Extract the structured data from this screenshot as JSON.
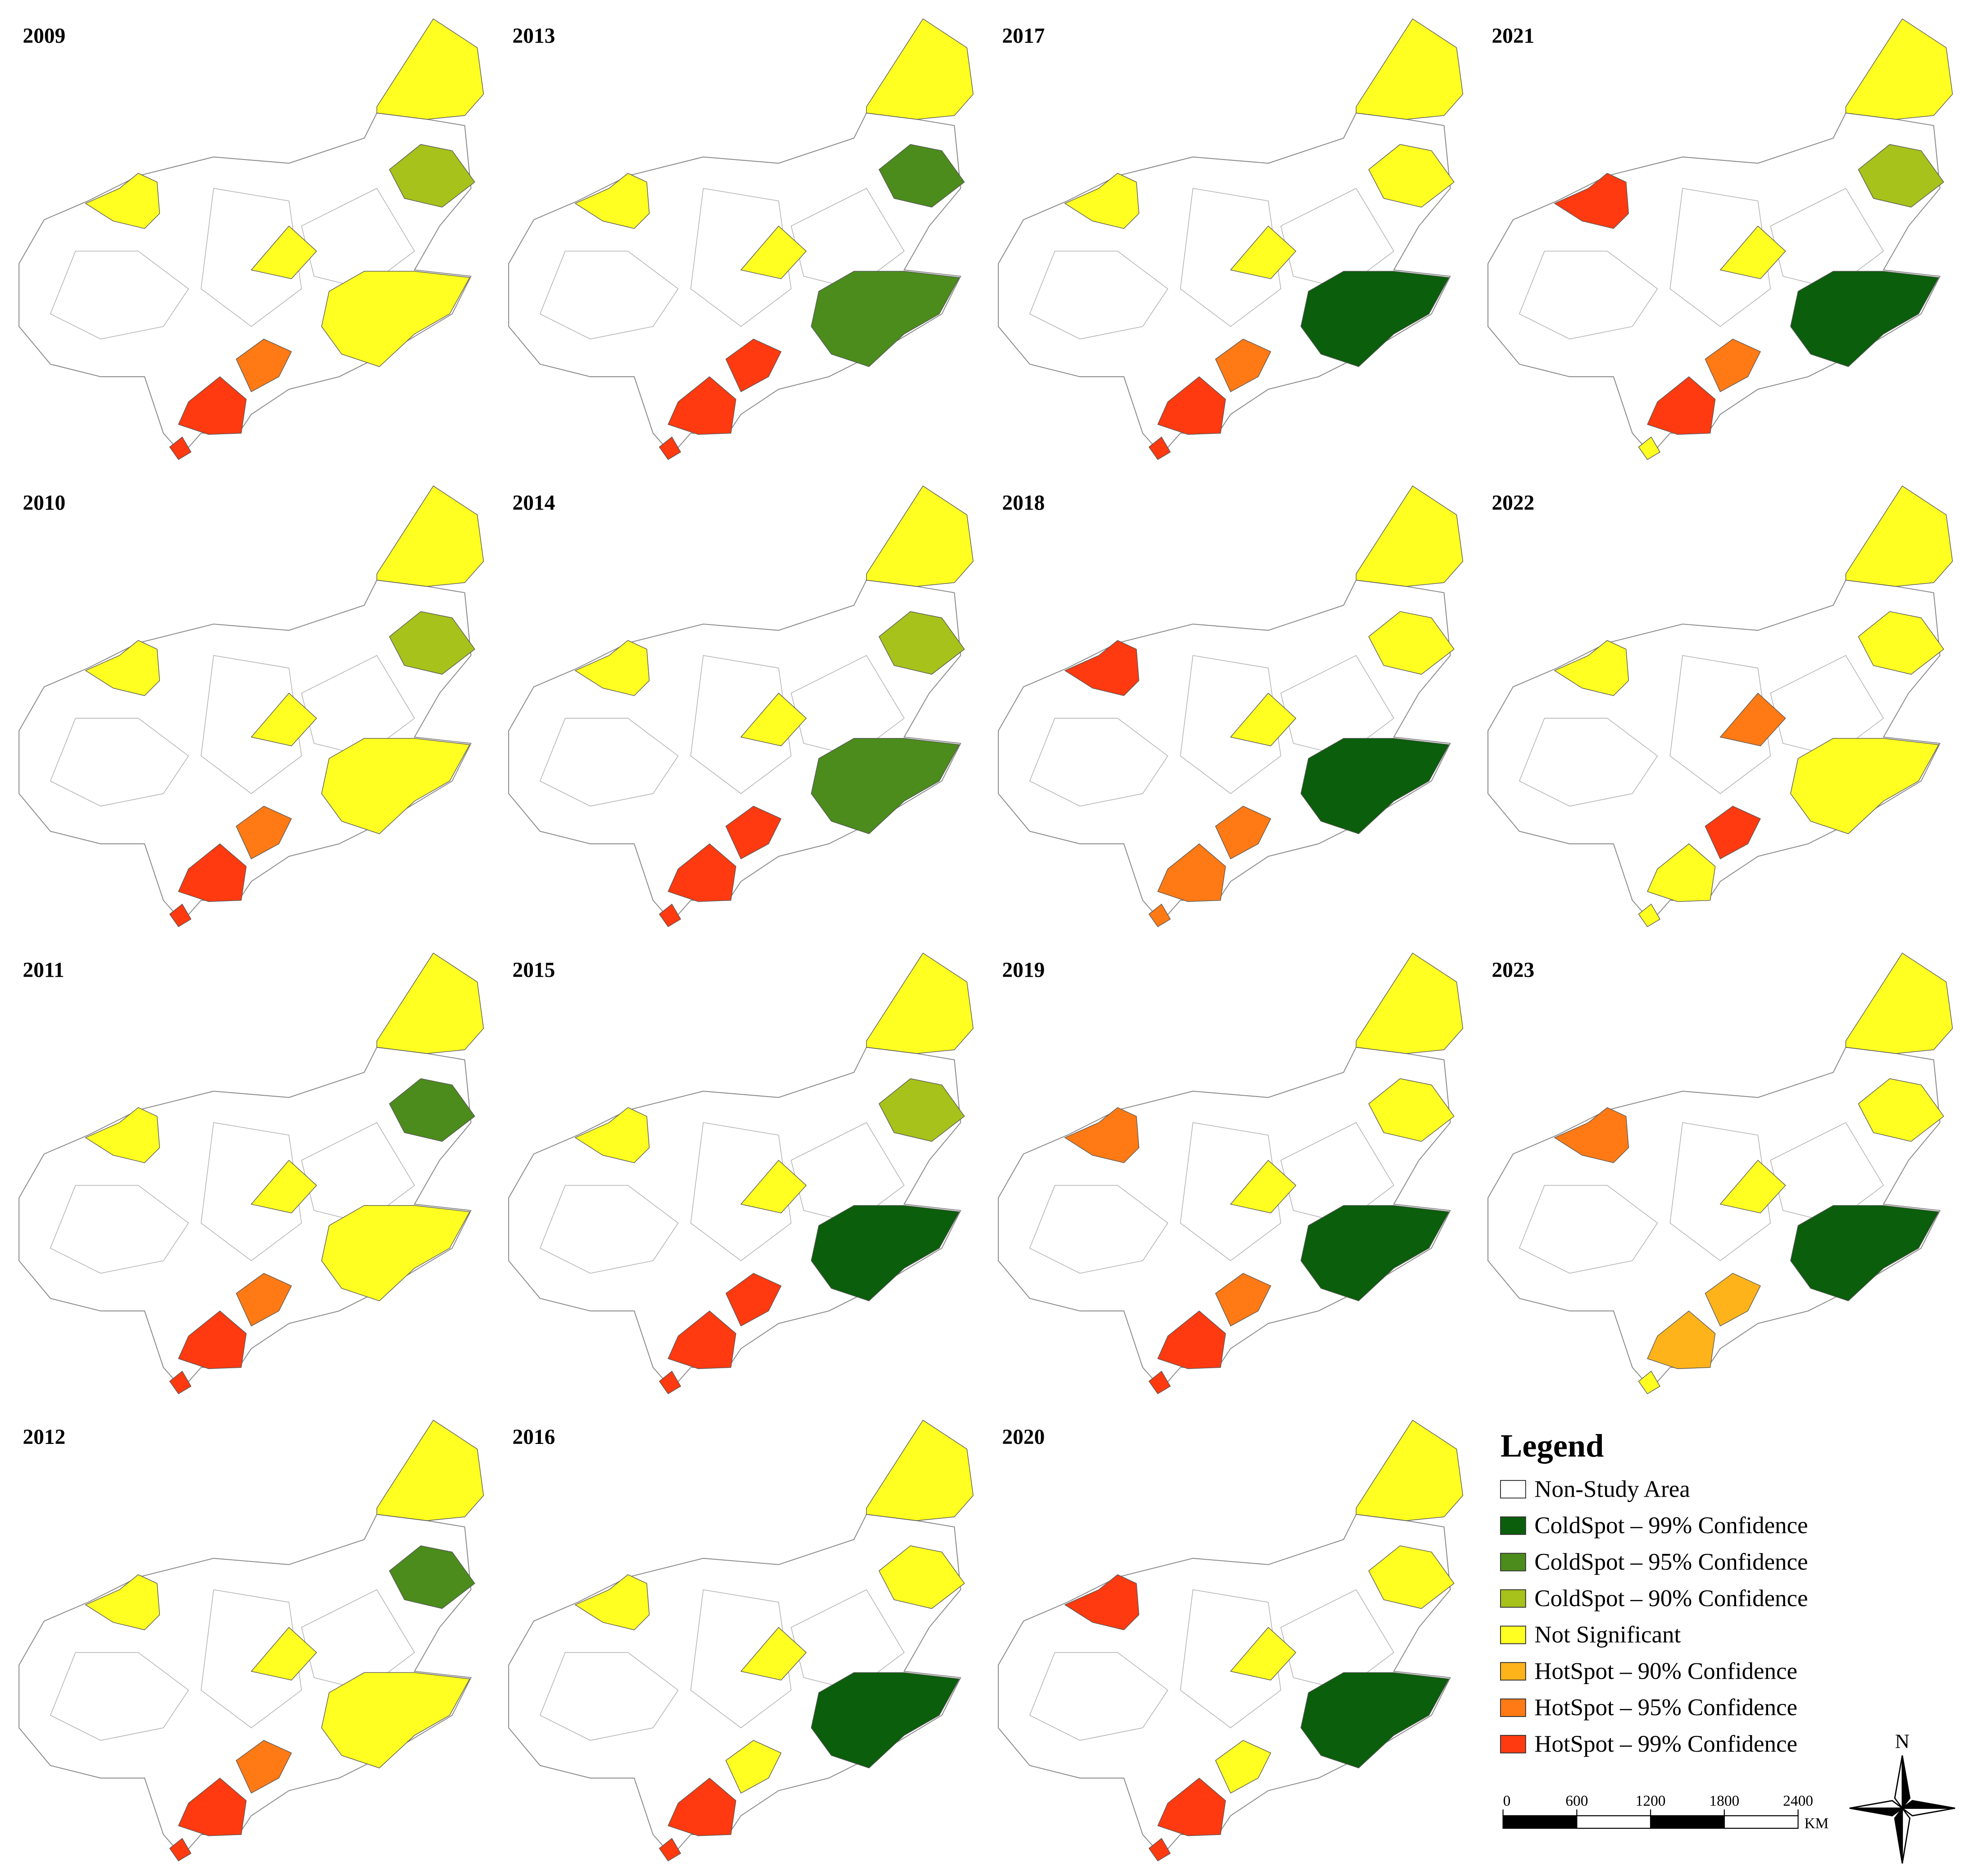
{
  "panels": [
    {
      "year": "2009"
    },
    {
      "year": "2010"
    },
    {
      "year": "2011"
    },
    {
      "year": "2012"
    },
    {
      "year": "2013"
    },
    {
      "year": "2014"
    },
    {
      "year": "2015"
    },
    {
      "year": "2016"
    },
    {
      "year": "2017"
    },
    {
      "year": "2018"
    },
    {
      "year": "2019"
    },
    {
      "year": "2020"
    },
    {
      "year": "2021"
    },
    {
      "year": "2022"
    },
    {
      "year": "2023"
    }
  ],
  "legend": {
    "title": "Legend",
    "items": [
      {
        "label": "Non-Study Area",
        "color": "#ffffff"
      },
      {
        "label": "ColdSpot – 99% Confidence",
        "color": "#0b5e0b"
      },
      {
        "label": "ColdSpot – 95% Confidence",
        "color": "#4b8c1c"
      },
      {
        "label": "ColdSpot – 90% Confidence",
        "color": "#a6c21b"
      },
      {
        "label": "Not Significant",
        "color": "#ffff22"
      },
      {
        "label": "HotSpot – 90% Confidence",
        "color": "#ffb31a"
      },
      {
        "label": "HotSpot – 95% Confidence",
        "color": "#ff7a14"
      },
      {
        "label": "HotSpot – 99% Confidence",
        "color": "#ff3a10"
      }
    ]
  },
  "scale_bar": {
    "ticks": [
      0,
      600,
      1200,
      1800,
      2400
    ],
    "unit": "KM"
  },
  "north_arrow": "N"
}
